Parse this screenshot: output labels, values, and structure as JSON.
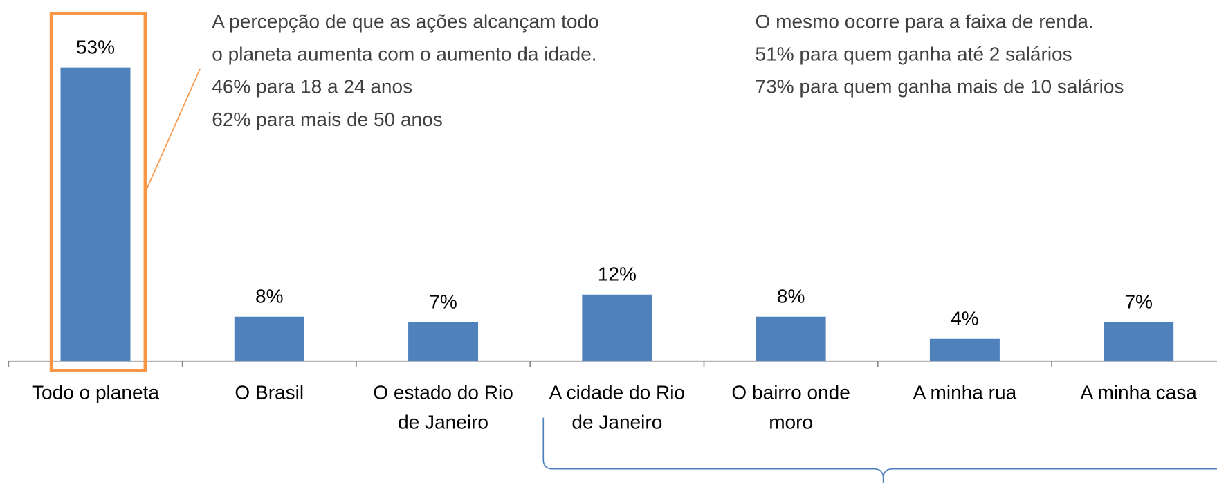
{
  "chart_data": {
    "type": "bar",
    "categories": [
      [
        "Todo o planeta"
      ],
      [
        "O Brasil"
      ],
      [
        "O estado do Rio",
        "de Janeiro"
      ],
      [
        "A cidade do Rio",
        "de Janeiro"
      ],
      [
        "O bairro onde",
        "moro"
      ],
      [
        "A minha rua"
      ],
      [
        "A minha casa"
      ]
    ],
    "values": [
      53,
      8,
      7,
      12,
      8,
      4,
      7
    ],
    "value_labels": [
      "53%",
      "8%",
      "7%",
      "12%",
      "8%",
      "4%",
      "7%"
    ],
    "color": "#4f81bd",
    "ylim": [
      0,
      60
    ],
    "highlight_color": "#f79646",
    "annotations": [
      [
        "A percepção de que as ações alcançam todo",
        "o planeta aumenta com o aumento da idade.",
        "46% para 18 a 24 anos",
        "62% para mais de 50 anos"
      ],
      [
        "O mesmo ocorre para a faixa de renda.",
        "51% para quem ganha até 2 salários",
        "73% para quem ganha mais de 10 salários"
      ]
    ]
  }
}
